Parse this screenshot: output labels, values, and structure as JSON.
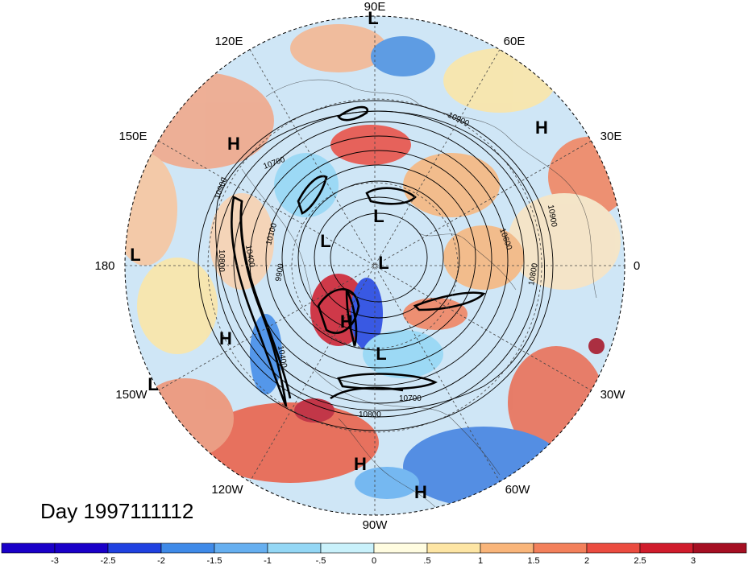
{
  "title": "Day 1997111112",
  "longitude_labels": [
    {
      "text": "90E"
    },
    {
      "text": "60E"
    },
    {
      "text": "30E"
    },
    {
      "text": "0"
    },
    {
      "text": "30W"
    },
    {
      "text": "60W"
    },
    {
      "text": "90W"
    },
    {
      "text": "120W"
    },
    {
      "text": "150W"
    },
    {
      "text": "180"
    },
    {
      "text": "150E"
    },
    {
      "text": "120E"
    }
  ],
  "pressure_centers": [
    {
      "type": "L"
    },
    {
      "type": "H"
    },
    {
      "type": "H"
    },
    {
      "type": "L"
    },
    {
      "type": "L"
    },
    {
      "type": "L"
    },
    {
      "type": "L"
    },
    {
      "type": "H"
    },
    {
      "type": "H"
    },
    {
      "type": "L"
    },
    {
      "type": "L"
    },
    {
      "type": "H"
    },
    {
      "type": "H"
    }
  ],
  "contour_labels": [
    "10900",
    "10700",
    "10900",
    "10100",
    "10400",
    "10800",
    "9900",
    "10900",
    "10600",
    "10800",
    "10700",
    "10800",
    "10400"
  ],
  "colorbar": {
    "colors": [
      "#1a00c8",
      "#2041e0",
      "#3f8ae8",
      "#66aff0",
      "#94d7f5",
      "#c9f1fb",
      "#fffce0",
      "#fde5a4",
      "#f9b57a",
      "#f3805b",
      "#eb4c40",
      "#d01c2c",
      "#a50f22"
    ],
    "ticks": [
      "-3",
      "-2.5",
      "-2",
      "-1.5",
      "-1",
      "-.5",
      "0",
      ".5",
      "1",
      "1.5",
      "2",
      "2.5",
      "3"
    ]
  }
}
